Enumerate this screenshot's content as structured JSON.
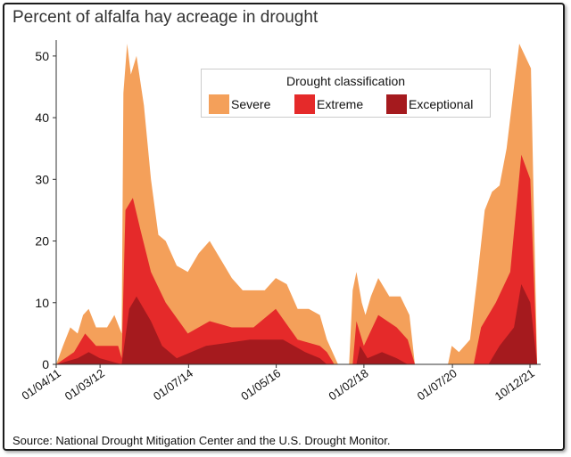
{
  "title": "Percent of alfalfa hay acreage in drought",
  "source": "Source: National Drought Mitigation Center and the U.S. Drought Monitor.",
  "legend": {
    "title": "Drought classification",
    "items": [
      {
        "label": "Severe",
        "color": "#F4A05A"
      },
      {
        "label": "Extreme",
        "color": "#E52A2A"
      },
      {
        "label": "Exceptional",
        "color": "#A51A1E"
      }
    ]
  },
  "chart_data": {
    "type": "area",
    "stacking": "overlapping (cumulative percent of acreage at each level or worse)",
    "title": "Percent of alfalfa hay acreage in drought",
    "xlabel": "",
    "ylabel": "",
    "ylim": [
      0,
      52
    ],
    "yticks": [
      0,
      10,
      20,
      30,
      40,
      50
    ],
    "xlim": [
      "2011-01-04",
      "2021-12-10"
    ],
    "xticks": [
      {
        "date": "2011-01-04",
        "label": "01/04/11"
      },
      {
        "date": "2012-01-03",
        "label": "01/03/12"
      },
      {
        "date": "2014-01-07",
        "label": "01/07/14"
      },
      {
        "date": "2016-01-05",
        "label": "01/05/16"
      },
      {
        "date": "2018-01-02",
        "label": "01/02/18"
      },
      {
        "date": "2020-01-07",
        "label": "01/07/20"
      },
      {
        "date": "2021-10-12",
        "label": "10/12/21"
      }
    ],
    "grid": false,
    "legend_position": "top-right",
    "series": [
      {
        "name": "Severe",
        "color": "#F4A05A",
        "points": [
          [
            "2011-01-04",
            0
          ],
          [
            "2011-03-01",
            3
          ],
          [
            "2011-05-01",
            6
          ],
          [
            "2011-07-01",
            5
          ],
          [
            "2011-08-15",
            8
          ],
          [
            "2011-10-01",
            9
          ],
          [
            "2011-12-01",
            6
          ],
          [
            "2012-03-01",
            6
          ],
          [
            "2012-05-01",
            8
          ],
          [
            "2012-07-01",
            5
          ],
          [
            "2012-07-15",
            44
          ],
          [
            "2012-08-15",
            52
          ],
          [
            "2012-09-15",
            47
          ],
          [
            "2012-11-01",
            50
          ],
          [
            "2013-01-01",
            42
          ],
          [
            "2013-03-01",
            30
          ],
          [
            "2013-05-01",
            21
          ],
          [
            "2013-07-01",
            20
          ],
          [
            "2013-10-01",
            16
          ],
          [
            "2014-01-01",
            15
          ],
          [
            "2014-04-01",
            18
          ],
          [
            "2014-07-01",
            20
          ],
          [
            "2014-10-01",
            17
          ],
          [
            "2015-01-01",
            14
          ],
          [
            "2015-04-01",
            12
          ],
          [
            "2015-07-01",
            12
          ],
          [
            "2015-10-01",
            12
          ],
          [
            "2016-01-01",
            14
          ],
          [
            "2016-04-01",
            13
          ],
          [
            "2016-07-01",
            9
          ],
          [
            "2016-10-01",
            9
          ],
          [
            "2017-01-01",
            8
          ],
          [
            "2017-03-01",
            4
          ],
          [
            "2017-06-01",
            0
          ],
          [
            "2017-09-01",
            0
          ],
          [
            "2017-10-01",
            12
          ],
          [
            "2017-11-01",
            15
          ],
          [
            "2017-12-15",
            10
          ],
          [
            "2018-01-15",
            8
          ],
          [
            "2018-03-01",
            11
          ],
          [
            "2018-05-01",
            14
          ],
          [
            "2018-08-01",
            11
          ],
          [
            "2018-11-01",
            11
          ],
          [
            "2019-01-15",
            8
          ],
          [
            "2019-03-01",
            0
          ],
          [
            "2019-12-01",
            0
          ],
          [
            "2020-01-01",
            3
          ],
          [
            "2020-03-01",
            2
          ],
          [
            "2020-06-01",
            4
          ],
          [
            "2020-08-01",
            14
          ],
          [
            "2020-10-01",
            25
          ],
          [
            "2020-12-01",
            28
          ],
          [
            "2021-02-01",
            29
          ],
          [
            "2021-04-01",
            35
          ],
          [
            "2021-06-01",
            45
          ],
          [
            "2021-07-15",
            52
          ],
          [
            "2021-09-01",
            50
          ],
          [
            "2021-10-20",
            48
          ],
          [
            "2021-12-10",
            0
          ]
        ]
      },
      {
        "name": "Extreme",
        "color": "#E52A2A",
        "points": [
          [
            "2011-01-04",
            0
          ],
          [
            "2011-06-01",
            2
          ],
          [
            "2011-09-01",
            5
          ],
          [
            "2011-12-01",
            3
          ],
          [
            "2012-06-01",
            3
          ],
          [
            "2012-07-01",
            1
          ],
          [
            "2012-08-01",
            25
          ],
          [
            "2012-10-01",
            27
          ],
          [
            "2012-12-01",
            22
          ],
          [
            "2013-03-01",
            15
          ],
          [
            "2013-07-01",
            10
          ],
          [
            "2014-01-01",
            5
          ],
          [
            "2014-07-01",
            7
          ],
          [
            "2015-01-01",
            6
          ],
          [
            "2015-07-01",
            6
          ],
          [
            "2016-01-01",
            9
          ],
          [
            "2016-07-01",
            4
          ],
          [
            "2017-01-01",
            3
          ],
          [
            "2017-03-01",
            2
          ],
          [
            "2017-05-01",
            0
          ],
          [
            "2017-10-01",
            0
          ],
          [
            "2017-11-01",
            7
          ],
          [
            "2018-01-01",
            3
          ],
          [
            "2018-05-01",
            8
          ],
          [
            "2018-10-01",
            6
          ],
          [
            "2019-01-01",
            4
          ],
          [
            "2019-03-01",
            0
          ],
          [
            "2020-07-01",
            0
          ],
          [
            "2020-09-01",
            6
          ],
          [
            "2021-01-01",
            10
          ],
          [
            "2021-05-01",
            15
          ],
          [
            "2021-08-01",
            34
          ],
          [
            "2021-10-15",
            30
          ],
          [
            "2021-12-10",
            0
          ]
        ]
      },
      {
        "name": "Exceptional",
        "color": "#A51A1E",
        "points": [
          [
            "2011-01-04",
            0
          ],
          [
            "2011-07-01",
            1
          ],
          [
            "2011-10-01",
            2
          ],
          [
            "2012-01-01",
            1
          ],
          [
            "2012-07-01",
            0
          ],
          [
            "2012-09-01",
            9
          ],
          [
            "2012-11-01",
            11
          ],
          [
            "2013-03-01",
            7
          ],
          [
            "2013-06-01",
            3
          ],
          [
            "2013-10-01",
            1
          ],
          [
            "2014-06-01",
            3
          ],
          [
            "2015-06-01",
            4
          ],
          [
            "2016-03-01",
            4
          ],
          [
            "2016-09-01",
            2
          ],
          [
            "2017-01-01",
            1
          ],
          [
            "2017-03-01",
            0
          ],
          [
            "2017-11-01",
            0
          ],
          [
            "2017-12-01",
            3
          ],
          [
            "2018-02-01",
            1
          ],
          [
            "2018-06-01",
            2
          ],
          [
            "2018-10-01",
            1
          ],
          [
            "2019-01-01",
            0
          ],
          [
            "2020-11-01",
            0
          ],
          [
            "2021-02-01",
            3
          ],
          [
            "2021-06-01",
            6
          ],
          [
            "2021-08-01",
            13
          ],
          [
            "2021-10-15",
            10
          ],
          [
            "2021-12-10",
            0
          ]
        ]
      }
    ]
  }
}
